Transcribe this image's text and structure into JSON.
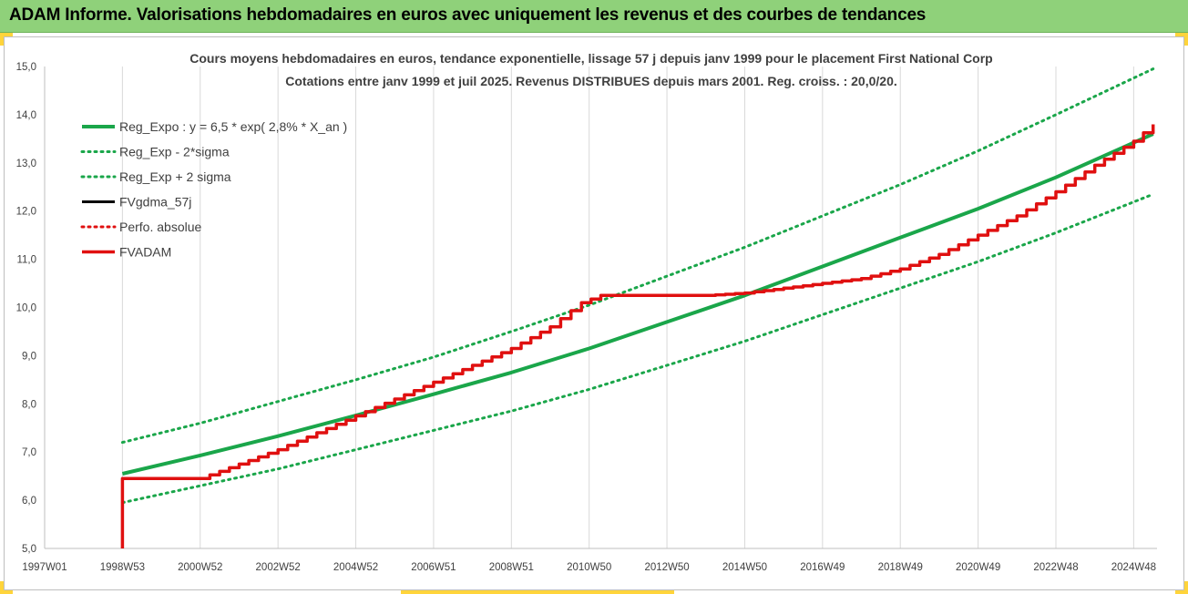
{
  "banner": {
    "title": "ADAM Informe. Valorisations hebdomadaires en euros avec uniquement les revenus et des courbes de tendances"
  },
  "colors": {
    "banner_bg": "#8fd17a",
    "accent_yellow": "#ffd43b",
    "trend_green": "#1aa64a",
    "fvadam_red": "#e01010",
    "fvgdma_black": "#000000"
  },
  "chart_data": {
    "type": "line",
    "title": "Cours moyens hebdomadaires en euros, tendance exponentielle, lissage 57 j depuis janv 1999  pour le placement First National Corp",
    "subtitle": "Cotations entre janv 1999 et juil 2025. Revenus DISTRIBUES depuis mars 2001. Reg. croiss. : 20,0/20.",
    "xlabel": "",
    "ylabel": "",
    "ylim": [
      5.0,
      15.0
    ],
    "xlim": [
      1997.0,
      2025.6
    ],
    "grid": {
      "vertical": true,
      "horizontal": false
    },
    "legend_position": "top-left",
    "y_ticks": [
      "5,0",
      "6,0",
      "7,0",
      "8,0",
      "9,0",
      "10,0",
      "11,0",
      "12,0",
      "13,0",
      "14,0",
      "15,0"
    ],
    "x_ticks": [
      {
        "label": "1997W01",
        "x": 1997.0
      },
      {
        "label": "1998W53",
        "x": 1999.0
      },
      {
        "label": "2000W52",
        "x": 2001.0
      },
      {
        "label": "2002W52",
        "x": 2003.0
      },
      {
        "label": "2004W52",
        "x": 2005.0
      },
      {
        "label": "2006W51",
        "x": 2007.0
      },
      {
        "label": "2008W51",
        "x": 2009.0
      },
      {
        "label": "2010W50",
        "x": 2011.0
      },
      {
        "label": "2012W50",
        "x": 2013.0
      },
      {
        "label": "2014W50",
        "x": 2015.0
      },
      {
        "label": "2016W49",
        "x": 2017.0
      },
      {
        "label": "2018W49",
        "x": 2019.0
      },
      {
        "label": "2020W49",
        "x": 2021.0
      },
      {
        "label": "2022W48",
        "x": 2023.0
      },
      {
        "label": "2024W48",
        "x": 2025.0
      }
    ],
    "series": [
      {
        "name": "Reg_Expo : y = 6,5 * exp( 2,8% *  X_an )",
        "style": "solid-thick",
        "color": "#1aa64a",
        "x": [
          1999.0,
          2001.0,
          2003.0,
          2005.0,
          2007.0,
          2009.0,
          2011.0,
          2013.0,
          2015.0,
          2017.0,
          2019.0,
          2021.0,
          2023.0,
          2025.5
        ],
        "y": [
          6.55,
          6.93,
          7.33,
          7.76,
          8.2,
          8.65,
          9.15,
          9.7,
          10.25,
          10.85,
          11.45,
          12.05,
          12.7,
          13.6
        ]
      },
      {
        "name": "Reg_Exp - 2*sigma",
        "style": "dotted",
        "color": "#1aa64a",
        "x": [
          1999.0,
          2001.0,
          2003.0,
          2005.0,
          2007.0,
          2009.0,
          2011.0,
          2013.0,
          2015.0,
          2017.0,
          2019.0,
          2021.0,
          2023.0,
          2025.5
        ],
        "y": [
          5.95,
          6.3,
          6.65,
          7.05,
          7.45,
          7.85,
          8.3,
          8.8,
          9.3,
          9.85,
          10.4,
          10.95,
          11.55,
          12.35
        ]
      },
      {
        "name": "Reg_Exp + 2 sigma",
        "style": "dotted",
        "color": "#1aa64a",
        "x": [
          1999.0,
          2001.0,
          2003.0,
          2005.0,
          2007.0,
          2009.0,
          2011.0,
          2013.0,
          2015.0,
          2017.0,
          2019.0,
          2021.0,
          2023.0,
          2025.5
        ],
        "y": [
          7.2,
          7.6,
          8.05,
          8.5,
          8.97,
          9.5,
          10.05,
          10.65,
          11.25,
          11.9,
          12.55,
          13.25,
          14.0,
          14.95
        ]
      },
      {
        "name": "FVgdma_57j",
        "style": "solid",
        "color": "#000000",
        "x": [],
        "y": []
      },
      {
        "name": "Perfo. absolue",
        "style": "dotted",
        "color": "#e01010",
        "x": [],
        "y": []
      },
      {
        "name": "FVADAM",
        "style": "stepped",
        "color": "#e01010",
        "x": [
          1999.0,
          1999.0,
          2001.0,
          2002.0,
          2003.0,
          2004.0,
          2005.0,
          2006.0,
          2007.0,
          2008.0,
          2009.0,
          2010.0,
          2010.8,
          2011.3,
          2012.0,
          2013.0,
          2014.0,
          2015.0,
          2016.0,
          2017.0,
          2018.0,
          2019.0,
          2020.0,
          2021.0,
          2022.0,
          2023.0,
          2024.0,
          2025.0,
          2025.5
        ],
        "y": [
          5.0,
          6.45,
          6.45,
          6.75,
          7.05,
          7.4,
          7.75,
          8.1,
          8.45,
          8.8,
          9.15,
          9.6,
          10.1,
          10.25,
          10.25,
          10.25,
          10.25,
          10.3,
          10.4,
          10.5,
          10.6,
          10.8,
          11.1,
          11.5,
          11.9,
          12.4,
          12.95,
          13.45,
          13.8
        ]
      }
    ]
  }
}
